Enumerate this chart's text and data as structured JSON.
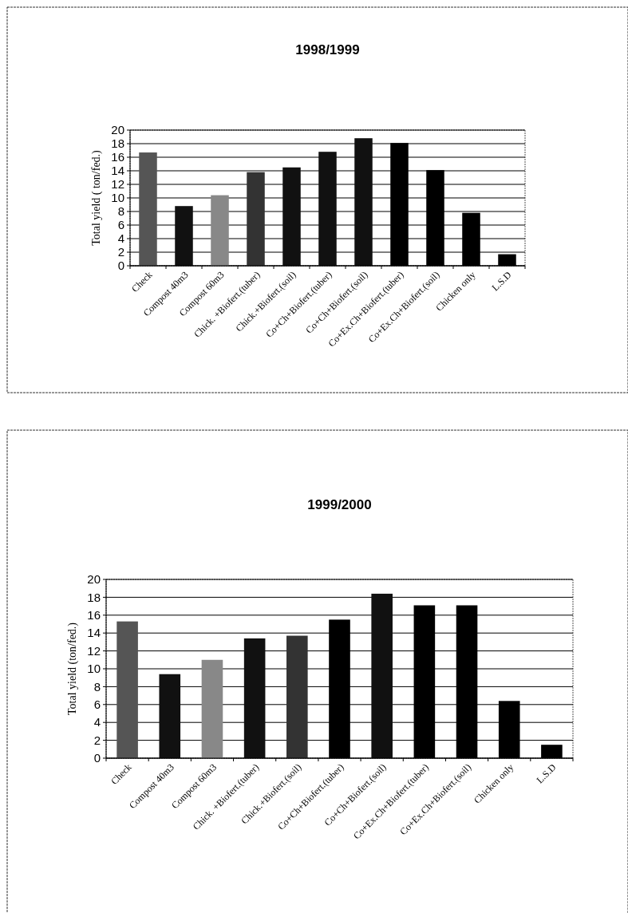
{
  "chart_data": [
    {
      "type": "bar",
      "title": "1998/1999",
      "ylabel": "Total yield ( ton/fed.)",
      "categories": [
        "Check",
        "Compost 40m3",
        "Compost 60m3",
        "Chick. +Biofert.(tuber)",
        "Chick.+Biofert.(soil)",
        "Co+Ch+Biofert.(tuber)",
        "Co+Ch+Biofert.(soil)",
        "Co+Ex.Ch+Biofert.(tuber)",
        "Co+Ex.Ch+Biofert.(soil)",
        "Chicken only",
        "L.S.D"
      ],
      "values": [
        16.7,
        8.8,
        10.4,
        13.8,
        14.5,
        16.8,
        18.8,
        18.1,
        14.1,
        7.8,
        1.7
      ],
      "colors": [
        "#555555",
        "#111111",
        "#888888",
        "#333333",
        "#111111",
        "#111111",
        "#111111",
        "#000000",
        "#000000",
        "#000000",
        "#000000"
      ],
      "ylim": [
        0,
        20
      ],
      "yticks": [
        0,
        2,
        4,
        6,
        8,
        10,
        12,
        14,
        16,
        18,
        20
      ],
      "grid": "y"
    },
    {
      "type": "bar",
      "title": "1999/2000",
      "ylabel": "Total yield (ton/fed.)",
      "categories": [
        "Check",
        "Compost 40m3",
        "Compost 60m3",
        "Chick. +Biofert.(tuber)",
        "Chick.+Biofert.(soil)",
        "Co+Ch+Biofert.(tuber)",
        "Co+Ch+Biofert.(soil)",
        "Co+Ex.Ch+Biofert.(tuber)",
        "Co+Ex.Ch+Biofert.(soil)",
        "Chicken only",
        "L.S.D"
      ],
      "values": [
        15.3,
        9.4,
        11.0,
        13.4,
        13.7,
        15.5,
        18.4,
        17.1,
        17.1,
        6.4,
        1.5
      ],
      "colors": [
        "#555555",
        "#111111",
        "#888888",
        "#111111",
        "#333333",
        "#000000",
        "#111111",
        "#000000",
        "#000000",
        "#000000",
        "#000000"
      ],
      "ylim": [
        0,
        20
      ],
      "yticks": [
        0,
        2,
        4,
        6,
        8,
        10,
        12,
        14,
        16,
        18,
        20
      ],
      "grid": "y"
    }
  ]
}
